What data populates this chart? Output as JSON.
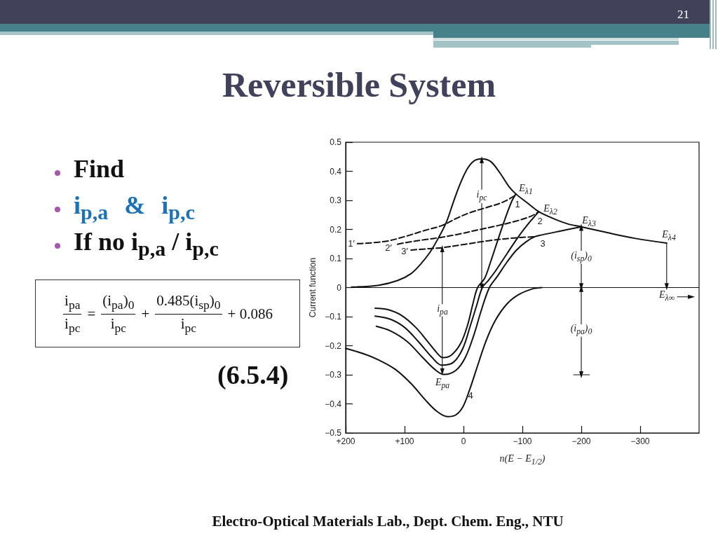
{
  "chart_data": {
    "type": "line",
    "title": "Reversible System",
    "xlabel": "n(E − E$_{1/2}$)",
    "ylabel": "Current function",
    "xlim": [
      200,
      -400
    ],
    "xticks": [
      {
        "value": 200,
        "label": "+200"
      },
      {
        "value": 100,
        "label": "+100"
      },
      0,
      {
        "value": -100,
        "label": "−100"
      },
      {
        "value": -200,
        "label": "−200"
      },
      {
        "value": -300,
        "label": "−300"
      }
    ],
    "ylim": [
      -0.5,
      0.5
    ],
    "yticks": [
      {
        "value": -0.5,
        "label": "−0.5"
      },
      {
        "value": -0.4,
        "label": "−0.4"
      },
      {
        "value": -0.3,
        "label": "−0.3"
      },
      {
        "value": -0.2,
        "label": "−0.2"
      },
      {
        "value": -0.1,
        "label": "−0.1"
      },
      0,
      0.1,
      0.2,
      0.3,
      0.4,
      0.5
    ],
    "marker": "none",
    "line_style": "solid",
    "ref_lines": [
      {
        "axis": "y",
        "value": 0,
        "color": "#111111"
      }
    ],
    "series": [
      {
        "color": "#111111",
        "x": [
          190,
          144,
          112,
          89,
          73,
          57,
          43,
          29,
          17,
          5,
          -7,
          -18,
          -31,
          -46,
          -62,
          -77,
          -89,
          -106,
          -128,
          -153,
          -177,
          -200,
          -244,
          -292,
          -345
        ],
        "values": [
          0.002,
          0.008,
          0.024,
          0.048,
          0.08,
          0.121,
          0.169,
          0.225,
          0.295,
          0.36,
          0.41,
          0.436,
          0.443,
          0.434,
          0.394,
          0.348,
          0.322,
          0.295,
          0.261,
          0.237,
          0.219,
          0.209,
          0.189,
          0.169,
          0.153
        ]
      },
      {
        "color": "#111111",
        "x": [
          -89,
          -82,
          -70,
          -58,
          -46,
          -36,
          -24,
          -16,
          -7,
          5,
          21,
          35,
          45,
          61,
          81,
          105,
          128,
          150
        ],
        "values": [
          0.322,
          0.297,
          0.233,
          0.161,
          0.088,
          0.032,
          0,
          -0.056,
          -0.129,
          -0.193,
          -0.233,
          -0.241,
          -0.225,
          -0.185,
          -0.137,
          -0.096,
          -0.076,
          -0.071
        ]
      },
      {
        "color": "#111111",
        "x": [
          -128,
          -114,
          -94,
          -74,
          -54,
          -42,
          -32,
          -22,
          -12,
          1,
          17,
          37,
          53,
          77,
          100,
          124,
          150
        ],
        "values": [
          0.261,
          0.229,
          0.177,
          0.117,
          0.056,
          0.024,
          0,
          -0.064,
          -0.129,
          -0.209,
          -0.257,
          -0.267,
          -0.241,
          -0.185,
          -0.137,
          -0.109,
          -0.098
        ]
      },
      {
        "color": "#111111",
        "x": [
          -200,
          -161,
          -133,
          -121,
          -106,
          -90,
          -74,
          -58,
          -44,
          -30,
          -18,
          -3,
          13,
          33,
          49,
          69,
          96,
          124,
          148
        ],
        "values": [
          0.209,
          0.193,
          0.181,
          0.175,
          0.157,
          0.129,
          0.088,
          0.04,
          0,
          -0.08,
          -0.161,
          -0.241,
          -0.285,
          -0.299,
          -0.281,
          -0.241,
          -0.185,
          -0.149,
          -0.133
        ]
      },
      {
        "color": "#111111",
        "x": [
          -133,
          -118,
          -94,
          -74,
          -54,
          -38,
          -22,
          -10,
          1,
          13,
          27,
          45,
          65,
          89,
          116,
          144,
          168,
          200
        ],
        "values": [
          0,
          -0.004,
          -0.024,
          -0.056,
          -0.113,
          -0.185,
          -0.281,
          -0.354,
          -0.41,
          -0.438,
          -0.444,
          -0.426,
          -0.386,
          -0.33,
          -0.281,
          -0.249,
          -0.229,
          -0.209
        ]
      },
      {
        "color": "#111111",
        "line_style": "dashed",
        "x": [
          180,
          132,
          97,
          65,
          37,
          13,
          -10,
          -42,
          -66,
          -86,
          -89
        ],
        "values": [
          0.151,
          0.159,
          0.177,
          0.197,
          0.213,
          0.237,
          0.257,
          0.277,
          0.293,
          0.315,
          0.322
        ]
      },
      {
        "color": "#111111",
        "line_style": "dashed",
        "x": [
          112,
          97,
          65,
          37,
          5,
          -26,
          -58,
          -90,
          -114,
          -125,
          -128
        ],
        "values": [
          0.149,
          0.155,
          0.165,
          0.173,
          0.185,
          0.199,
          0.213,
          0.229,
          0.245,
          0.257,
          0.261
        ]
      },
      {
        "color": "#111111",
        "line_style": "dashed",
        "x": [
          89,
          57,
          37,
          -3,
          -42,
          -82,
          -121
        ],
        "values": [
          0.129,
          0.134,
          0.137,
          0.149,
          0.161,
          0.17,
          0.175
        ]
      },
      {
        "color": "#111111",
        "marker": "triangle",
        "x": [
          -31,
          -31
        ],
        "values": [
          0.338,
          0.44
        ]
      },
      {
        "color": "#111111",
        "marker": "triangle",
        "x": [
          -31,
          -31
        ],
        "values": [
          0.289,
          0.002
        ]
      },
      {
        "color": "#111111",
        "marker": "triangle",
        "x": [
          36,
          36
        ],
        "values": [
          -0.056,
          0.134
        ]
      },
      {
        "color": "#111111",
        "marker": "triangle",
        "x": [
          36,
          36
        ],
        "values": [
          -0.1,
          -0.29
        ]
      },
      {
        "color": "#111111",
        "marker": "triangle",
        "x": [
          -200,
          -200
        ],
        "values": [
          0.128,
          0.207
        ]
      },
      {
        "color": "#111111",
        "marker": "triangle",
        "x": [
          -200,
          -200
        ],
        "values": [
          0.08,
          0.003
        ]
      },
      {
        "color": "#111111",
        "marker": "triangle",
        "x": [
          -200,
          -200
        ],
        "values": [
          -0.125,
          -0.003
        ]
      },
      {
        "color": "#111111",
        "marker": "triangle",
        "x": [
          -200,
          -200
        ],
        "values": [
          -0.17,
          -0.3
        ]
      },
      {
        "color": "#111111",
        "x": [
          -187,
          -214
        ],
        "values": [
          -0.3,
          -0.3
        ]
      },
      {
        "color": "#111111",
        "marker": "triangle",
        "x": [
          -345,
          -345
        ],
        "values": [
          0.153,
          0.003
        ]
      },
      {
        "color": "#111111",
        "marker": "triangle",
        "x": [
          -363,
          -387
        ],
        "values": [
          -0.032,
          -0.032
        ]
      }
    ],
    "annotations": [
      "Find",
      "i$_{p,a}$ & i$_{p,c}$",
      "If no i$_{p,a}$ / i$_{p,c}$",
      "i$_{pa}$",
      "i$_{pc}$",
      "=",
      "(i$_{pa}$)$_{0}$",
      "i$_{pc}$",
      "+",
      "0.485(i$_{sp}$)$_{0}$",
      "i$_{pc}$",
      "+ 0.086",
      "(6.5.4)",
      "Electro-Optical Materials Lab., Dept. Chem. Eng., NTU",
      "21",
      "i$_{pc}$",
      "E$_{λ1}$",
      "E$_{λ2}$",
      "E$_{λ3}$",
      "E$_{λ4}$",
      "1",
      "2",
      "3",
      "4",
      "1′",
      "2′",
      "3′",
      "(i$_{sp}$)$_{0}$",
      "(i$_{pa}$)$_{0}$",
      "i$_{pa}$",
      "E$_{pa}$",
      "E$_{λ∞}$"
    ]
  }
}
